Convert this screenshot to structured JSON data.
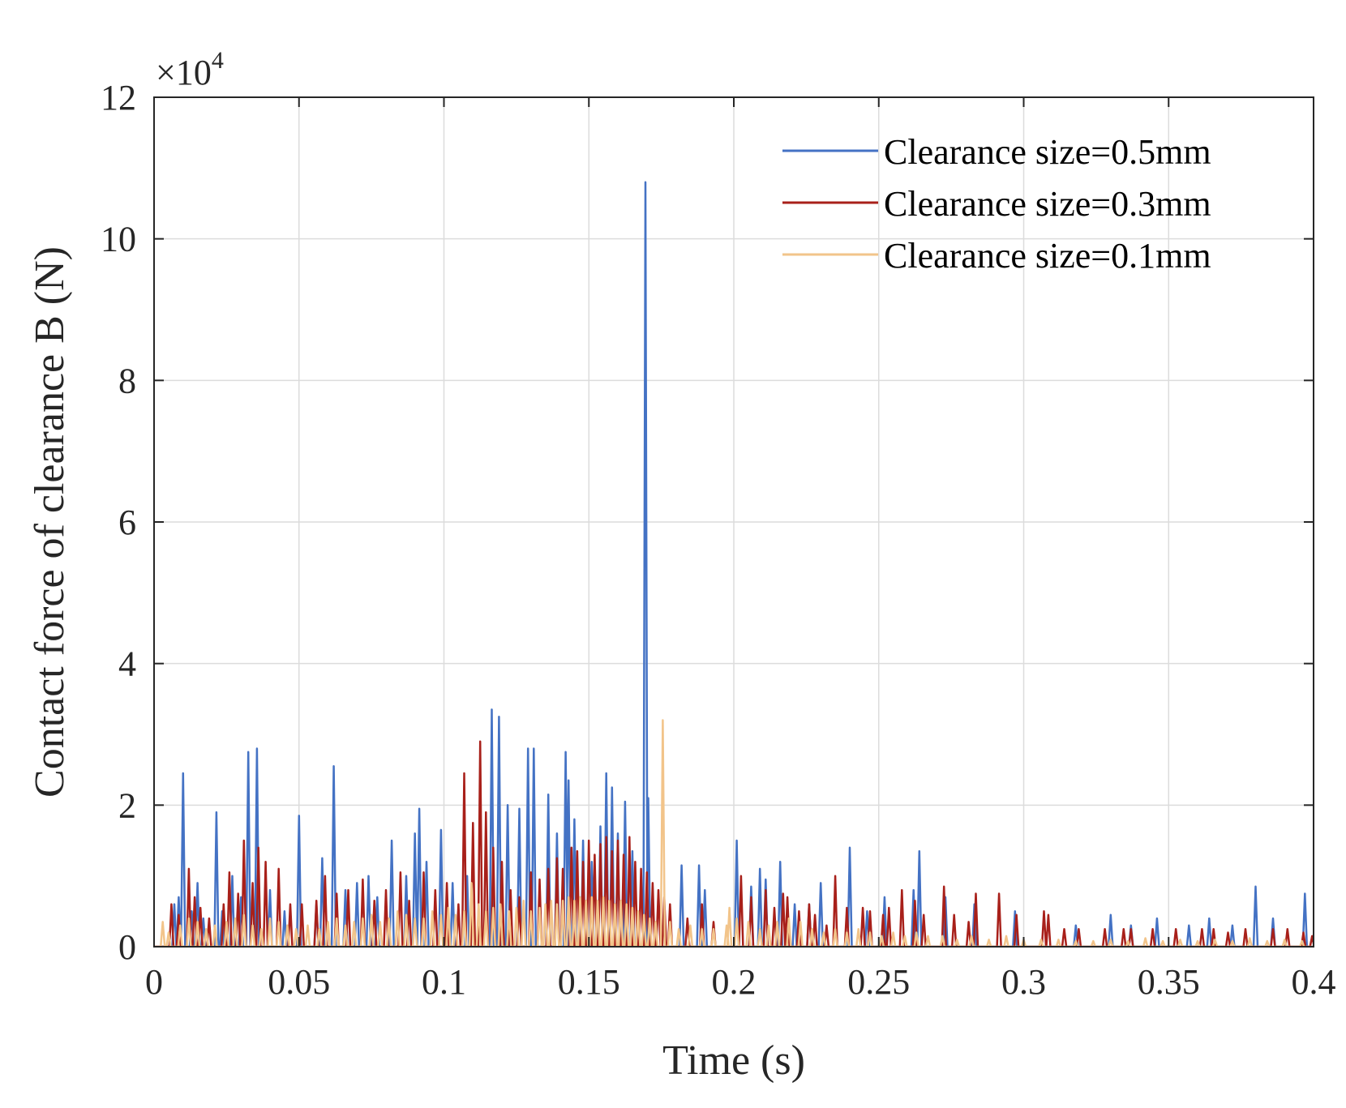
{
  "chart_data": {
    "type": "line",
    "title": "",
    "xlabel": "Time (s)",
    "ylabel": "Contact force of clearance B (N)",
    "y_exponent_label": {
      "base": "×10",
      "power": "4"
    },
    "xlim": [
      0,
      0.4
    ],
    "ylim": [
      0,
      120000
    ],
    "xticks": [
      0,
      0.05,
      0.1,
      0.15,
      0.2,
      0.25,
      0.3,
      0.35,
      0.4
    ],
    "xtick_labels": [
      "0",
      "0.05",
      "0.1",
      "0.15",
      "0.2",
      "0.25",
      "0.3",
      "0.35",
      "0.4"
    ],
    "yticks": [
      0,
      20000,
      40000,
      60000,
      80000,
      100000,
      120000
    ],
    "ytick_labels": [
      "0",
      "2",
      "4",
      "6",
      "8",
      "10",
      "12"
    ],
    "grid": true,
    "legend_position": "top-right",
    "series": [
      {
        "name": "Clearance size=0.5mm",
        "color": "#4472c4",
        "spikes": [
          [
            0.007,
            6000
          ],
          [
            0.0085,
            7000
          ],
          [
            0.01,
            24500
          ],
          [
            0.013,
            5000
          ],
          [
            0.015,
            9000
          ],
          [
            0.017,
            4000
          ],
          [
            0.0215,
            19000
          ],
          [
            0.0235,
            5000
          ],
          [
            0.027,
            10000
          ],
          [
            0.03,
            7000
          ],
          [
            0.0325,
            27500
          ],
          [
            0.0355,
            28000
          ],
          [
            0.04,
            8000
          ],
          [
            0.045,
            5000
          ],
          [
            0.05,
            18500
          ],
          [
            0.056,
            6000
          ],
          [
            0.058,
            12500
          ],
          [
            0.062,
            25500
          ],
          [
            0.066,
            8000
          ],
          [
            0.07,
            9000
          ],
          [
            0.074,
            10000
          ],
          [
            0.077,
            7000
          ],
          [
            0.082,
            15000
          ],
          [
            0.087,
            10000
          ],
          [
            0.09,
            16000
          ],
          [
            0.0915,
            19500
          ],
          [
            0.094,
            12000
          ],
          [
            0.099,
            16500
          ],
          [
            0.103,
            9000
          ],
          [
            0.108,
            10000
          ],
          [
            0.1165,
            33500
          ],
          [
            0.119,
            32500
          ],
          [
            0.122,
            20000
          ],
          [
            0.126,
            19500
          ],
          [
            0.129,
            28000
          ],
          [
            0.131,
            28000
          ],
          [
            0.136,
            21500
          ],
          [
            0.139,
            16000
          ],
          [
            0.142,
            27500
          ],
          [
            0.143,
            23500
          ],
          [
            0.145,
            18000
          ],
          [
            0.148,
            15000
          ],
          [
            0.151,
            12000
          ],
          [
            0.154,
            17000
          ],
          [
            0.156,
            24500
          ],
          [
            0.158,
            22500
          ],
          [
            0.16,
            16000
          ],
          [
            0.1625,
            20500
          ],
          [
            0.165,
            13500
          ],
          [
            0.1695,
            108000
          ],
          [
            0.1705,
            21000
          ],
          [
            0.182,
            11500
          ],
          [
            0.188,
            11500
          ],
          [
            0.19,
            8000
          ],
          [
            0.201,
            15000
          ],
          [
            0.206,
            8500
          ],
          [
            0.209,
            11000
          ],
          [
            0.211,
            9500
          ],
          [
            0.216,
            12000
          ],
          [
            0.221,
            6000
          ],
          [
            0.226,
            6000
          ],
          [
            0.23,
            9000
          ],
          [
            0.24,
            14000
          ],
          [
            0.246,
            5000
          ],
          [
            0.252,
            7000
          ],
          [
            0.262,
            8000
          ],
          [
            0.264,
            13500
          ],
          [
            0.273,
            7000
          ],
          [
            0.283,
            6000
          ],
          [
            0.297,
            5000
          ],
          [
            0.318,
            3000
          ],
          [
            0.33,
            4500
          ],
          [
            0.337,
            3000
          ],
          [
            0.346,
            4000
          ],
          [
            0.357,
            3000
          ],
          [
            0.364,
            4000
          ],
          [
            0.372,
            3000
          ],
          [
            0.38,
            8500
          ],
          [
            0.386,
            4000
          ],
          [
            0.397,
            7500
          ]
        ]
      },
      {
        "name": "Clearance size=0.3mm",
        "color": "#a8201a",
        "spikes": [
          [
            0.006,
            6000
          ],
          [
            0.0085,
            4500
          ],
          [
            0.012,
            11000
          ],
          [
            0.014,
            7000
          ],
          [
            0.016,
            5500
          ],
          [
            0.019,
            4000
          ],
          [
            0.024,
            6000
          ],
          [
            0.026,
            10500
          ],
          [
            0.029,
            7500
          ],
          [
            0.031,
            15000
          ],
          [
            0.034,
            9000
          ],
          [
            0.036,
            14000
          ],
          [
            0.0385,
            12000
          ],
          [
            0.043,
            11000
          ],
          [
            0.047,
            6000
          ],
          [
            0.051,
            6000
          ],
          [
            0.056,
            6500
          ],
          [
            0.059,
            10000
          ],
          [
            0.063,
            7500
          ],
          [
            0.067,
            8000
          ],
          [
            0.072,
            9500
          ],
          [
            0.076,
            6500
          ],
          [
            0.08,
            8000
          ],
          [
            0.085,
            10500
          ],
          [
            0.088,
            6500
          ],
          [
            0.093,
            10500
          ],
          [
            0.097,
            8000
          ],
          [
            0.101,
            9000
          ],
          [
            0.105,
            6000
          ],
          [
            0.107,
            24500
          ],
          [
            0.11,
            17500
          ],
          [
            0.1125,
            29000
          ],
          [
            0.1145,
            19000
          ],
          [
            0.117,
            14000
          ],
          [
            0.12,
            12000
          ],
          [
            0.123,
            8000
          ],
          [
            0.126,
            7000
          ],
          [
            0.13,
            10500
          ],
          [
            0.133,
            9500
          ],
          [
            0.136,
            11000
          ],
          [
            0.139,
            12500
          ],
          [
            0.141,
            11000
          ],
          [
            0.144,
            14000
          ],
          [
            0.146,
            13500
          ],
          [
            0.148,
            12000
          ],
          [
            0.15,
            15000
          ],
          [
            0.152,
            13000
          ],
          [
            0.154,
            14500
          ],
          [
            0.156,
            15500
          ],
          [
            0.158,
            13500
          ],
          [
            0.16,
            15000
          ],
          [
            0.162,
            13000
          ],
          [
            0.164,
            15500
          ],
          [
            0.166,
            12000
          ],
          [
            0.168,
            11000
          ],
          [
            0.17,
            10500
          ],
          [
            0.172,
            9000
          ],
          [
            0.174,
            8000
          ],
          [
            0.176,
            7000
          ],
          [
            0.178,
            6000
          ],
          [
            0.184,
            4000
          ],
          [
            0.189,
            6000
          ],
          [
            0.193,
            3500
          ],
          [
            0.2025,
            10000
          ],
          [
            0.206,
            7000
          ],
          [
            0.211,
            8000
          ],
          [
            0.214,
            5500
          ],
          [
            0.217,
            7500
          ],
          [
            0.2185,
            7000
          ],
          [
            0.2225,
            5000
          ],
          [
            0.226,
            6000
          ],
          [
            0.228,
            4500
          ],
          [
            0.232,
            3000
          ],
          [
            0.235,
            10000
          ],
          [
            0.239,
            5500
          ],
          [
            0.2445,
            5500
          ],
          [
            0.247,
            5000
          ],
          [
            0.2515,
            4500
          ],
          [
            0.2535,
            5500
          ],
          [
            0.258,
            8000
          ],
          [
            0.2625,
            6500
          ],
          [
            0.2655,
            4500
          ],
          [
            0.2725,
            8500
          ],
          [
            0.276,
            4500
          ],
          [
            0.281,
            3500
          ],
          [
            0.2835,
            7500
          ],
          [
            0.2915,
            7500
          ],
          [
            0.2975,
            4500
          ],
          [
            0.307,
            5000
          ],
          [
            0.3085,
            4500
          ],
          [
            0.314,
            2500
          ],
          [
            0.319,
            2500
          ],
          [
            0.328,
            2500
          ],
          [
            0.3345,
            2500
          ],
          [
            0.337,
            2500
          ],
          [
            0.3445,
            2500
          ],
          [
            0.3525,
            2500
          ],
          [
            0.3615,
            2500
          ],
          [
            0.3655,
            2500
          ],
          [
            0.3705,
            2000
          ],
          [
            0.3765,
            2500
          ],
          [
            0.386,
            2500
          ],
          [
            0.391,
            2500
          ],
          [
            0.3965,
            2000
          ],
          [
            0.3995,
            1500
          ]
        ]
      },
      {
        "name": "Clearance size=0.1mm",
        "color": "#f2c48a",
        "spikes": [
          [
            0.003,
            3500
          ],
          [
            0.005,
            2000
          ],
          [
            0.009,
            3000
          ],
          [
            0.012,
            4000
          ],
          [
            0.015,
            3500
          ],
          [
            0.018,
            2500
          ],
          [
            0.021,
            3000
          ],
          [
            0.025,
            3500
          ],
          [
            0.028,
            4000
          ],
          [
            0.031,
            4500
          ],
          [
            0.034,
            3000
          ],
          [
            0.037,
            2500
          ],
          [
            0.04,
            4000
          ],
          [
            0.043,
            3500
          ],
          [
            0.046,
            3000
          ],
          [
            0.049,
            2500
          ],
          [
            0.053,
            3000
          ],
          [
            0.057,
            2500
          ],
          [
            0.06,
            3500
          ],
          [
            0.063,
            4000
          ],
          [
            0.066,
            3000
          ],
          [
            0.069,
            3500
          ],
          [
            0.072,
            4000
          ],
          [
            0.075,
            4500
          ],
          [
            0.078,
            3500
          ],
          [
            0.081,
            4000
          ],
          [
            0.084,
            5000
          ],
          [
            0.087,
            4500
          ],
          [
            0.09,
            4000
          ],
          [
            0.093,
            4000
          ],
          [
            0.096,
            5000
          ],
          [
            0.099,
            4500
          ],
          [
            0.1015,
            5500
          ],
          [
            0.104,
            4500
          ],
          [
            0.107,
            5000
          ],
          [
            0.1095,
            9000
          ],
          [
            0.112,
            6000
          ],
          [
            0.1145,
            5000
          ],
          [
            0.117,
            5500
          ],
          [
            0.1195,
            6000
          ],
          [
            0.1225,
            5000
          ],
          [
            0.125,
            5500
          ],
          [
            0.1275,
            6500
          ],
          [
            0.13,
            5000
          ],
          [
            0.133,
            5500
          ],
          [
            0.135,
            6000
          ],
          [
            0.137,
            6500
          ],
          [
            0.139,
            6000
          ],
          [
            0.141,
            6500
          ],
          [
            0.143,
            7000
          ],
          [
            0.145,
            6500
          ],
          [
            0.147,
            7000
          ],
          [
            0.149,
            6500
          ],
          [
            0.151,
            7000
          ],
          [
            0.153,
            6500
          ],
          [
            0.155,
            7000
          ],
          [
            0.157,
            6500
          ],
          [
            0.159,
            6000
          ],
          [
            0.161,
            6500
          ],
          [
            0.163,
            6000
          ],
          [
            0.165,
            5500
          ],
          [
            0.167,
            5000
          ],
          [
            0.169,
            4500
          ],
          [
            0.171,
            4000
          ],
          [
            0.173,
            3500
          ],
          [
            0.1755,
            32000
          ],
          [
            0.178,
            3500
          ],
          [
            0.181,
            2500
          ],
          [
            0.185,
            3000
          ],
          [
            0.189,
            2500
          ],
          [
            0.193,
            2500
          ],
          [
            0.1975,
            3000
          ],
          [
            0.1985,
            5500
          ],
          [
            0.201,
            4000
          ],
          [
            0.205,
            3500
          ],
          [
            0.209,
            2500
          ],
          [
            0.212,
            3000
          ],
          [
            0.215,
            3500
          ],
          [
            0.219,
            4000
          ],
          [
            0.223,
            3500
          ],
          [
            0.227,
            2500
          ],
          [
            0.231,
            2000
          ],
          [
            0.235,
            2500
          ],
          [
            0.239,
            2000
          ],
          [
            0.243,
            2500
          ],
          [
            0.247,
            2000
          ],
          [
            0.251,
            1500
          ],
          [
            0.255,
            2000
          ],
          [
            0.259,
            1500
          ],
          [
            0.263,
            2000
          ],
          [
            0.267,
            1500
          ],
          [
            0.272,
            1500
          ],
          [
            0.277,
            1000
          ],
          [
            0.282,
            1500
          ],
          [
            0.288,
            1000
          ],
          [
            0.294,
            1500
          ],
          [
            0.3,
            1000
          ],
          [
            0.306,
            1000
          ],
          [
            0.312,
            1000
          ],
          [
            0.318,
            800
          ],
          [
            0.324,
            800
          ],
          [
            0.33,
            1000
          ],
          [
            0.336,
            800
          ],
          [
            0.342,
            1200
          ],
          [
            0.348,
            800
          ],
          [
            0.354,
            1000
          ],
          [
            0.36,
            800
          ],
          [
            0.366,
            1000
          ],
          [
            0.372,
            800
          ],
          [
            0.378,
            1200
          ],
          [
            0.384,
            800
          ],
          [
            0.39,
            1000
          ],
          [
            0.396,
            800
          ]
        ]
      }
    ]
  }
}
